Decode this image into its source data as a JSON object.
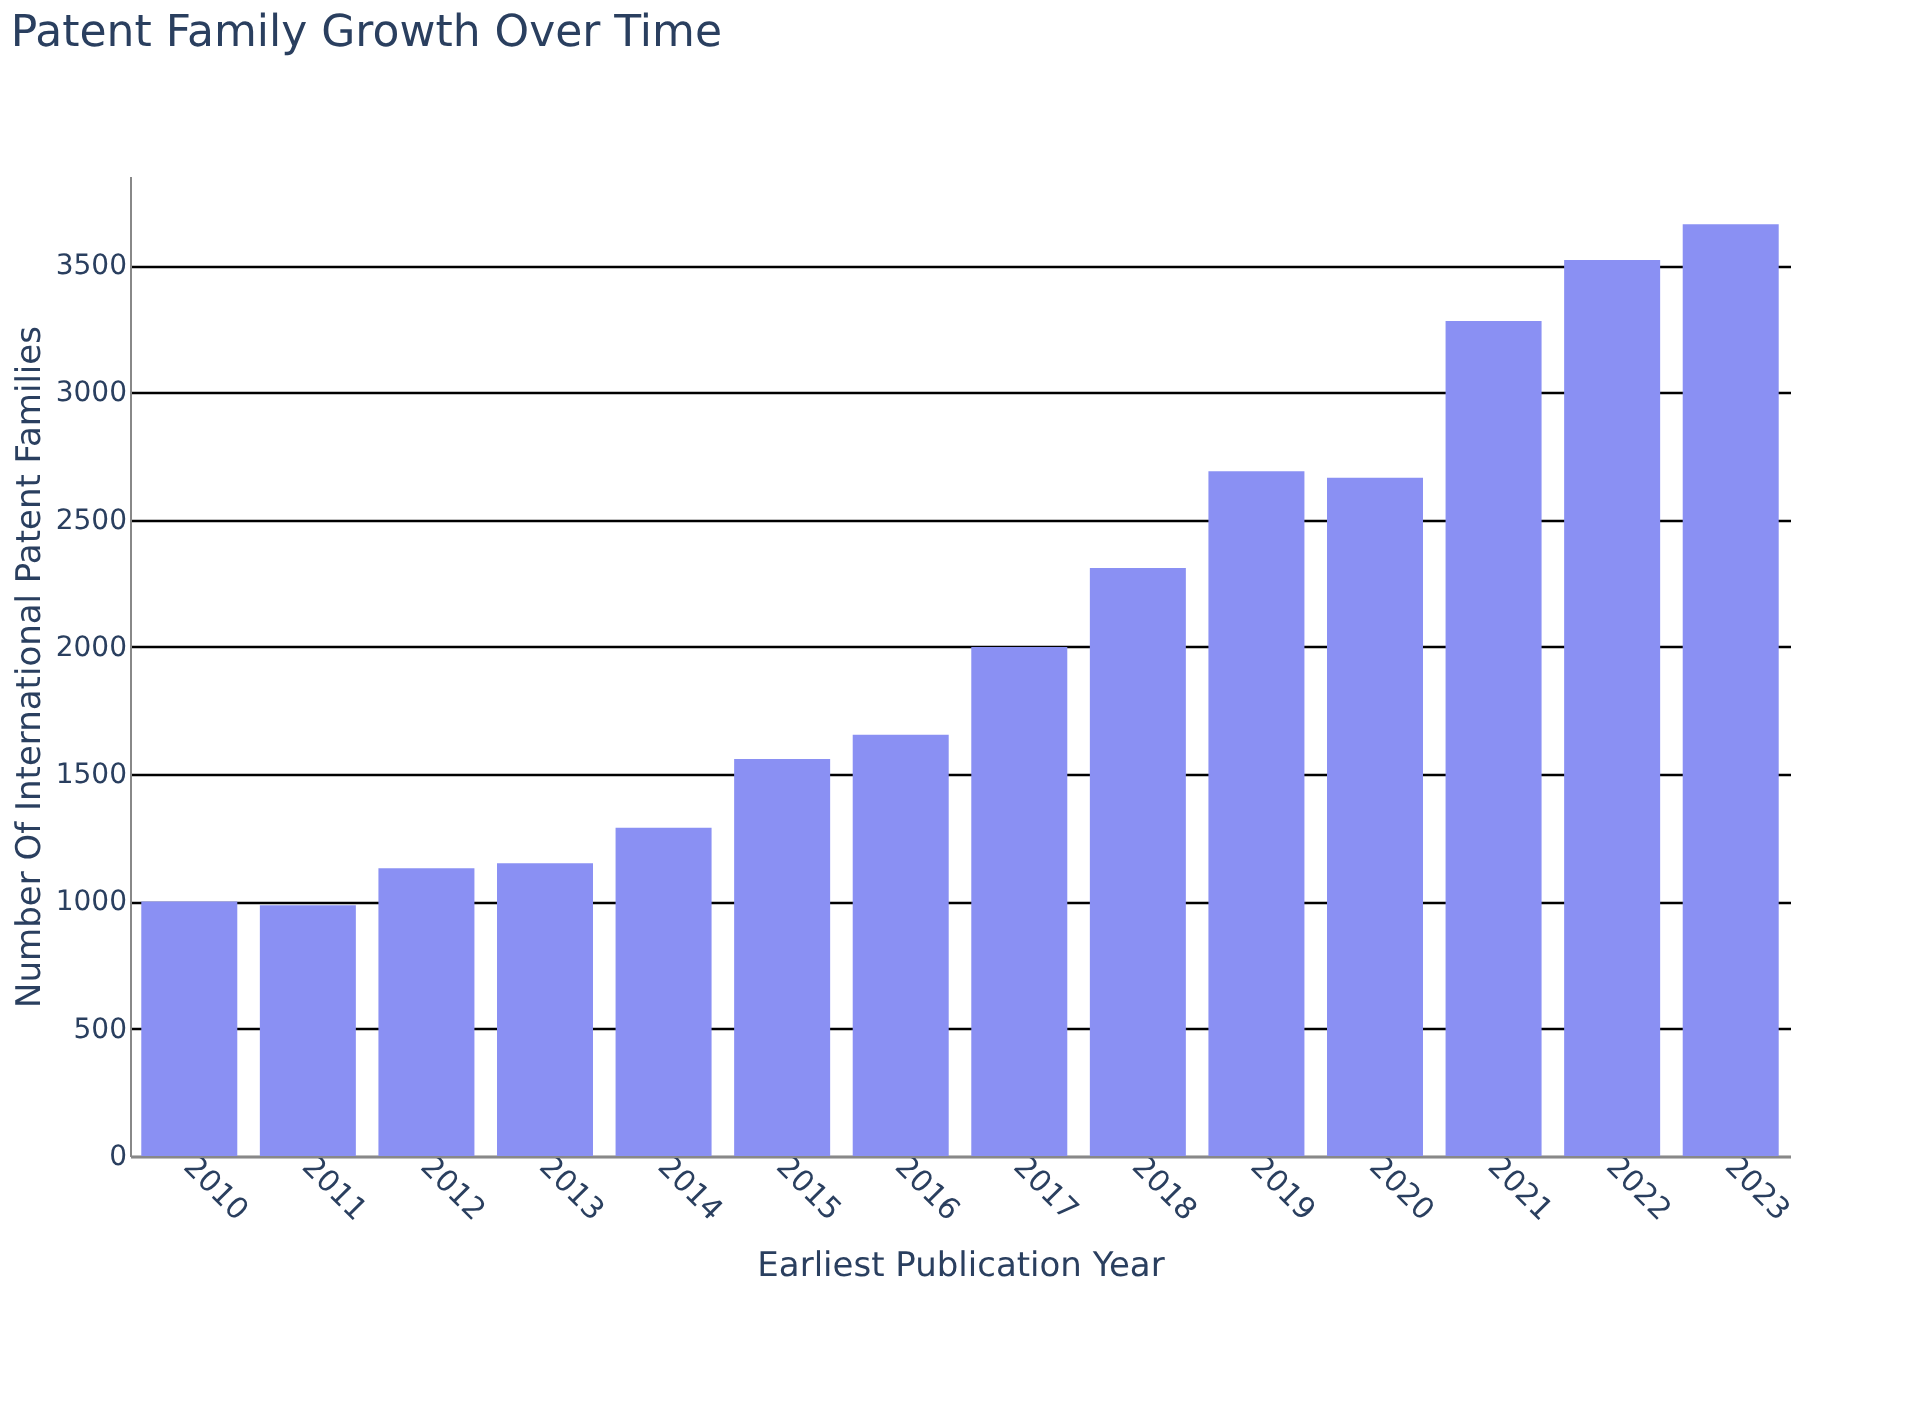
{
  "chart_data": {
    "type": "bar",
    "title": "Patent Family Growth Over Time",
    "xlabel": "Earliest Publication Year",
    "ylabel": "Number Of International Patent Families",
    "categories": [
      "2010",
      "2011",
      "2012",
      "2013",
      "2014",
      "2015",
      "2016",
      "2017",
      "2018",
      "2019",
      "2020",
      "2021",
      "2022",
      "2023"
    ],
    "values": [
      1000,
      985,
      1130,
      1150,
      1290,
      1560,
      1655,
      2000,
      2310,
      2690,
      2665,
      3280,
      3520,
      3660
    ],
    "color": "#8a90f3",
    "ylim": [
      0,
      3850
    ],
    "yticks": [
      0,
      500,
      1000,
      1500,
      2000,
      2500,
      3000,
      3500
    ],
    "grid": "y"
  }
}
